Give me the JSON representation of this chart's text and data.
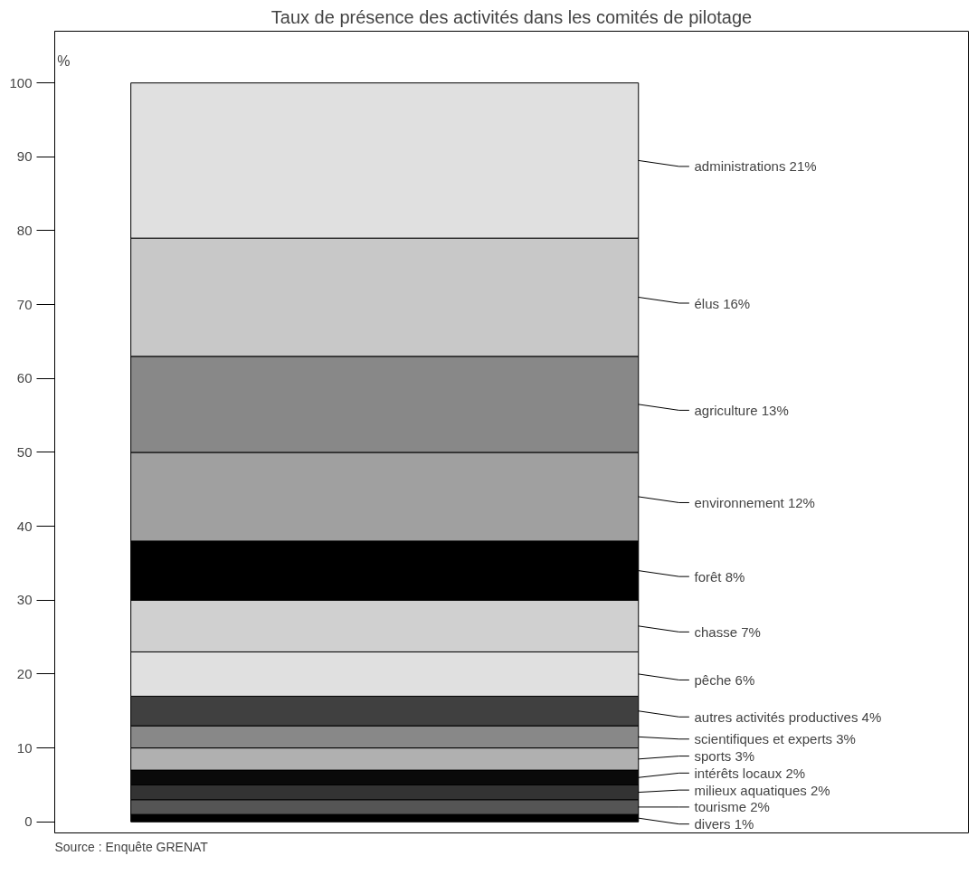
{
  "chart_data": {
    "type": "bar",
    "stacked": true,
    "title": "Taux de présence des activités dans les comités de pilotage",
    "ylabel": "%",
    "categories": [
      null
    ],
    "series": [
      {
        "name": "divers",
        "color": "#000000",
        "values": [
          1
        ],
        "value_labels": [
          "1%"
        ]
      },
      {
        "name": "tourisme",
        "color": "#555555",
        "values": [
          2
        ],
        "value_labels": [
          "2%"
        ]
      },
      {
        "name": "milieux aquatiques",
        "color": "#333333",
        "values": [
          2
        ],
        "value_labels": [
          "2%"
        ]
      },
      {
        "name": "intérêts locaux",
        "color": "#0a0a0a",
        "values": [
          2
        ],
        "value_labels": [
          "2%"
        ]
      },
      {
        "name": "sports",
        "color": "#b0b0b0",
        "values": [
          3
        ],
        "value_labels": [
          "3%"
        ]
      },
      {
        "name": "scientifiques et experts",
        "color": "#888888",
        "values": [
          3
        ],
        "value_labels": [
          "3%"
        ]
      },
      {
        "name": "autres activités productives",
        "color": "#404040",
        "values": [
          4
        ],
        "value_labels": [
          "4%"
        ]
      },
      {
        "name": "pêche",
        "color": "#e0e0e0",
        "values": [
          6
        ],
        "value_labels": [
          "6%"
        ]
      },
      {
        "name": "chasse",
        "color": "#d0d0d0",
        "values": [
          7
        ],
        "value_labels": [
          "7%"
        ]
      },
      {
        "name": "forêt",
        "color": "#000000",
        "values": [
          8
        ],
        "value_labels": [
          "8%"
        ]
      },
      {
        "name": "environnement",
        "color": "#a0a0a0",
        "values": [
          12
        ],
        "value_labels": [
          "12%"
        ]
      },
      {
        "name": "agriculture",
        "color": "#888888",
        "values": [
          13
        ],
        "value_labels": [
          "13%"
        ]
      },
      {
        "name": "élus",
        "color": "#c8c8c8",
        "values": [
          16
        ],
        "value_labels": [
          "16%"
        ]
      },
      {
        "name": "administrations",
        "color": "#e0e0e0",
        "values": [
          21
        ],
        "value_labels": [
          "21%"
        ]
      }
    ],
    "ylim": [
      0,
      100
    ],
    "yticks": [
      0,
      10,
      20,
      30,
      40,
      50,
      60,
      70,
      80,
      90,
      100
    ],
    "grid": false,
    "annotations": [
      "Source : Enquête GRENAT"
    ]
  }
}
